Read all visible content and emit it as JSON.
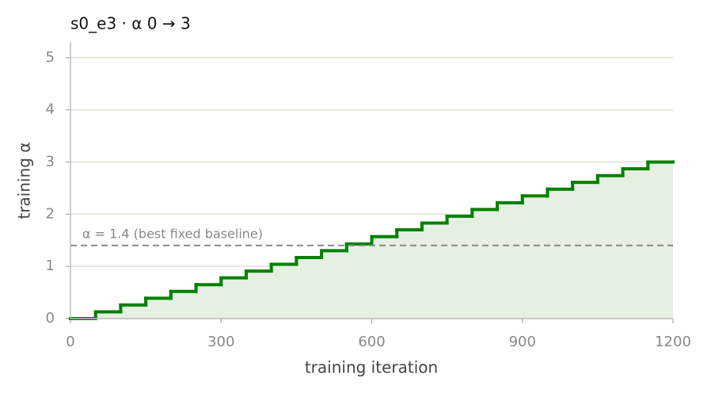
{
  "chart_data": {
    "type": "step",
    "title": "s0_e3   ·   α 0 → 3",
    "x_label": "training iteration",
    "y_label": "training α",
    "x": [
      0,
      50,
      100,
      150,
      200,
      250,
      300,
      350,
      400,
      450,
      500,
      550,
      600,
      650,
      700,
      750,
      800,
      850,
      900,
      950,
      1000,
      1050,
      1100,
      1150,
      1200
    ],
    "values": [
      0,
      0.13,
      0.26,
      0.39,
      0.52,
      0.65,
      0.78,
      0.91,
      1.04,
      1.17,
      1.3,
      1.43,
      1.57,
      1.7,
      1.83,
      1.96,
      2.09,
      2.22,
      2.35,
      2.48,
      2.61,
      2.74,
      2.87,
      3,
      3
    ],
    "color": "#008000",
    "fill_color": "#e5f0e3",
    "xlim": [
      0,
      1200
    ],
    "xticks": [
      0,
      300,
      600,
      900,
      1200
    ],
    "ylim": [
      0,
      5.3
    ],
    "yticks": [
      0,
      1,
      2,
      3,
      4,
      5
    ],
    "grid": true,
    "baseline": {
      "value": 1.4,
      "label": "α = 1.4 (best fixed baseline)"
    }
  }
}
